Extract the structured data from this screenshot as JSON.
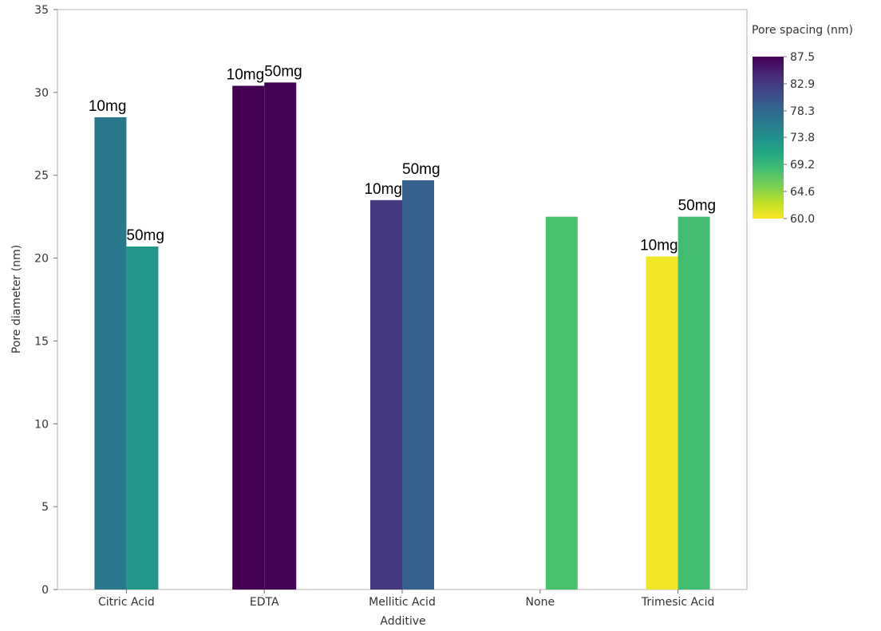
{
  "chart_data": {
    "type": "bar",
    "title": "",
    "xlabel": "Additive",
    "ylabel": "Pore diameter (nm)",
    "ylim": [
      0,
      35
    ],
    "yticks": [
      "0",
      "5",
      "10",
      "15",
      "20",
      "25",
      "30",
      "35"
    ],
    "categories": [
      "Citric Acid",
      "EDTA",
      "Mellitic Acid",
      "None",
      "Trimesic Acid"
    ],
    "grid": false,
    "bars": [
      {
        "category": "Citric Acid",
        "label": "10mg",
        "value": 28.5,
        "pore_spacing": 76.5
      },
      {
        "category": "Citric Acid",
        "label": "50mg",
        "value": 20.7,
        "pore_spacing": 73.0
      },
      {
        "category": "EDTA",
        "label": "10mg",
        "value": 30.4,
        "pore_spacing": 87.5
      },
      {
        "category": "EDTA",
        "label": "50mg",
        "value": 30.6,
        "pore_spacing": 87.3
      },
      {
        "category": "Mellitic Acid",
        "label": "10mg",
        "value": 23.5,
        "pore_spacing": 83.0
      },
      {
        "category": "Mellitic Acid",
        "label": "50mg",
        "value": 24.7,
        "pore_spacing": 79.0
      },
      {
        "category": "None",
        "label": "",
        "value": 22.5,
        "pore_spacing": 68.0
      },
      {
        "category": "Trimesic Acid",
        "label": "10mg",
        "value": 20.1,
        "pore_spacing": 60.5
      },
      {
        "category": "Trimesic Acid",
        "label": "50mg",
        "value": 22.5,
        "pore_spacing": 68.5
      }
    ],
    "colorbar": {
      "title": "Pore spacing (nm)",
      "min": 60.0,
      "max": 87.5,
      "ticks": [
        "87.5",
        "82.9",
        "78.3",
        "73.8",
        "69.2",
        "64.6",
        "60.0"
      ],
      "colormap": "viridis",
      "placement": "right"
    }
  }
}
